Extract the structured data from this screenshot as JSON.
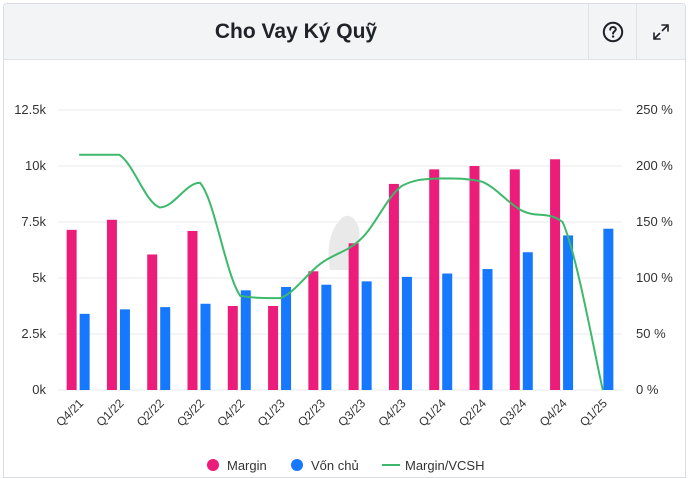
{
  "header": {
    "title": "Cho Vay Ký Quỹ",
    "help_icon": "question-circle-icon",
    "expand_icon": "expand-arrows-icon"
  },
  "colors": {
    "margin": "#ec1c7a",
    "von_chu": "#1677ff",
    "ratio": "#3cb96b",
    "grid": "#e6e8eb",
    "text": "#333333"
  },
  "chart_data": {
    "type": "bar",
    "categories": [
      "Q4/21",
      "Q1/22",
      "Q2/22",
      "Q3/22",
      "Q4/22",
      "Q1/23",
      "Q2/23",
      "Q3/23",
      "Q4/23",
      "Q1/24",
      "Q2/24",
      "Q3/24",
      "Q4/24",
      "Q1/25"
    ],
    "series": [
      {
        "name": "Margin",
        "type": "bar",
        "axis": "left",
        "values": [
          7150,
          7600,
          6050,
          7100,
          3750,
          3750,
          5300,
          6550,
          9200,
          9850,
          10000,
          9850,
          10300,
          null
        ]
      },
      {
        "name": "Vốn chủ",
        "type": "bar",
        "axis": "left",
        "values": [
          3400,
          3600,
          3700,
          3850,
          4450,
          4600,
          4700,
          4850,
          5050,
          5200,
          5400,
          6150,
          6900,
          7200
        ]
      },
      {
        "name": "Margin/VCSH",
        "type": "line",
        "axis": "right",
        "values": [
          210,
          210,
          163,
          185,
          84,
          82,
          113,
          135,
          182,
          189,
          186,
          160,
          150,
          0
        ]
      }
    ],
    "y_left": {
      "min": 0,
      "max": 12500,
      "ticks": [
        0,
        2500,
        5000,
        7500,
        10000,
        12500
      ],
      "tick_labels": [
        "0k",
        "2.5k",
        "5k",
        "7.5k",
        "10k",
        "12.5k"
      ]
    },
    "y_right": {
      "min": 0,
      "max": 250,
      "ticks": [
        0,
        50,
        100,
        150,
        200,
        250
      ],
      "tick_labels": [
        "0 %",
        "50 %",
        "100 %",
        "150 %",
        "200 %",
        "250 %"
      ]
    },
    "grid": true,
    "legend_position": "bottom-center"
  }
}
